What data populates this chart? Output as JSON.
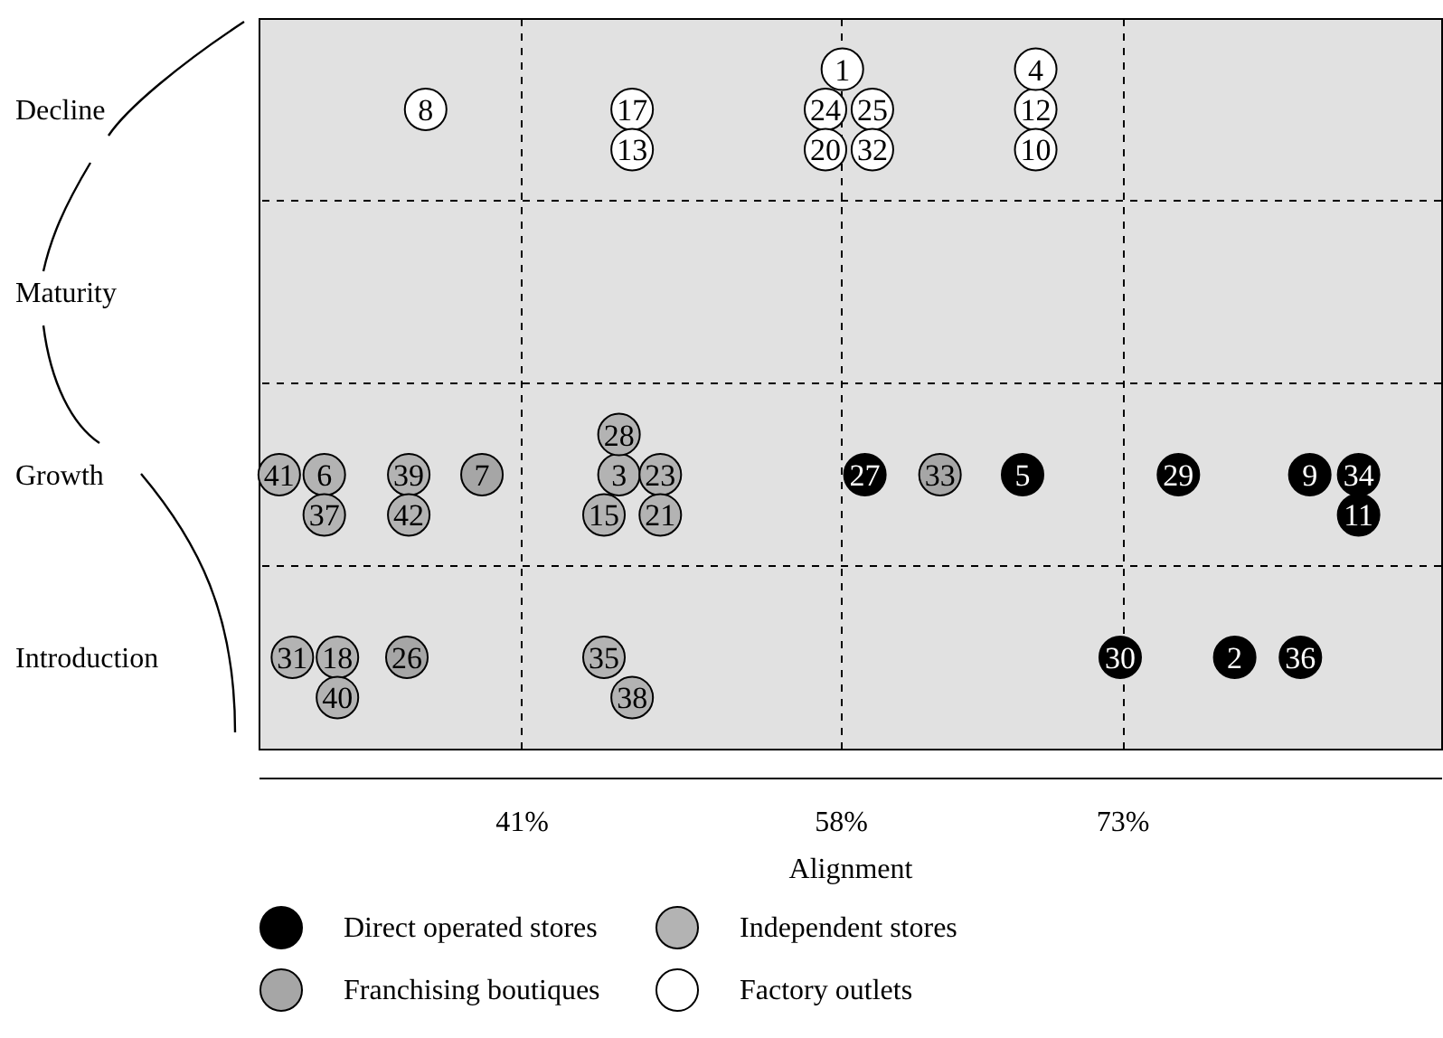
{
  "chart_data": {
    "type": "scatter",
    "orientation": "horizontal",
    "xlabel": "Alignment",
    "categories": [
      "Decline",
      "Maturity",
      "Growth",
      "Introduction"
    ],
    "xlim": [
      27,
      90
    ],
    "xticks": [
      {
        "value": 41,
        "label": "41%"
      },
      {
        "value": 58,
        "label": "58%"
      },
      {
        "value": 73,
        "label": "73%"
      }
    ],
    "grid": true,
    "marker": "circle",
    "legend": "bottom",
    "series": [
      {
        "name": "Direct operated stores",
        "color": "#000000",
        "x": [
          "Growth",
          "Growth",
          "Growth",
          "Growth",
          "Growth",
          "Growth",
          "Introduction",
          "Introduction",
          "Introduction"
        ],
        "values": [
          59.3,
          67.7,
          76.0,
          83.0,
          85.6,
          85.6,
          72.9,
          79.0,
          82.5
        ]
      },
      {
        "name": "Independent stores",
        "color": "#b3b3b3",
        "x": [
          "Growth",
          "Growth",
          "Growth",
          "Growth",
          "Growth",
          "Growth",
          "Growth",
          "Growth",
          "Growth",
          "Growth",
          "Introduction",
          "Introduction",
          "Introduction",
          "Introduction",
          "Introduction"
        ],
        "values": [
          30.5,
          28.1,
          30.5,
          35.0,
          35.0,
          46.2,
          48.4,
          45.4,
          48.4,
          46.2,
          31.2,
          28.8,
          31.2,
          45.4,
          46.9
        ]
      },
      {
        "name": "Franchising boutiques",
        "color": "#a6a6a6",
        "x": [
          "Growth",
          "Growth",
          "Introduction"
        ],
        "values": [
          38.9,
          63.3,
          34.9
        ]
      },
      {
        "name": "Factory outlets",
        "color": "#ffffff",
        "x": [
          "Decline",
          "Decline",
          "Decline",
          "Decline",
          "Decline",
          "Decline",
          "Decline",
          "Decline",
          "Decline",
          "Decline",
          "Decline"
        ],
        "values": [
          35.9,
          46.9,
          46.9,
          57.2,
          59.7,
          57.2,
          59.7,
          58.1,
          68.4,
          68.4,
          68.4
        ]
      }
    ],
    "annotations": [
      {
        "text": "27",
        "x": 59.3,
        "y": "Growth"
      },
      {
        "text": "5",
        "x": 67.7,
        "y": "Growth"
      },
      {
        "text": "29",
        "x": 76.0,
        "y": "Growth"
      },
      {
        "text": "9",
        "x": 83.0,
        "y": "Growth"
      },
      {
        "text": "34",
        "x": 85.6,
        "y": "Growth"
      },
      {
        "text": "11",
        "x": 85.6,
        "y": "Growth"
      },
      {
        "text": "30",
        "x": 72.9,
        "y": "Introduction"
      },
      {
        "text": "2",
        "x": 79.0,
        "y": "Introduction"
      },
      {
        "text": "36",
        "x": 82.5,
        "y": "Introduction"
      },
      {
        "text": "6",
        "x": 30.5,
        "y": "Growth"
      },
      {
        "text": "41",
        "x": 28.1,
        "y": "Growth"
      },
      {
        "text": "37",
        "x": 30.5,
        "y": "Growth"
      },
      {
        "text": "39",
        "x": 35.0,
        "y": "Growth"
      },
      {
        "text": "42",
        "x": 35.0,
        "y": "Growth"
      },
      {
        "text": "3",
        "x": 46.2,
        "y": "Growth"
      },
      {
        "text": "23",
        "x": 48.4,
        "y": "Growth"
      },
      {
        "text": "15",
        "x": 45.4,
        "y": "Growth"
      },
      {
        "text": "21",
        "x": 48.4,
        "y": "Growth"
      },
      {
        "text": "28",
        "x": 46.2,
        "y": "Growth"
      },
      {
        "text": "18",
        "x": 31.2,
        "y": "Introduction"
      },
      {
        "text": "31",
        "x": 28.8,
        "y": "Introduction"
      },
      {
        "text": "40",
        "x": 31.2,
        "y": "Introduction"
      },
      {
        "text": "35",
        "x": 45.4,
        "y": "Introduction"
      },
      {
        "text": "38",
        "x": 46.9,
        "y": "Introduction"
      },
      {
        "text": "7",
        "x": 38.9,
        "y": "Growth"
      },
      {
        "text": "33",
        "x": 63.3,
        "y": "Growth"
      },
      {
        "text": "26",
        "x": 34.9,
        "y": "Introduction"
      },
      {
        "text": "8",
        "x": 35.9,
        "y": "Decline"
      },
      {
        "text": "17",
        "x": 46.9,
        "y": "Decline"
      },
      {
        "text": "13",
        "x": 46.9,
        "y": "Decline"
      },
      {
        "text": "24",
        "x": 57.2,
        "y": "Decline"
      },
      {
        "text": "25",
        "x": 59.7,
        "y": "Decline"
      },
      {
        "text": "20",
        "x": 57.2,
        "y": "Decline"
      },
      {
        "text": "32",
        "x": 59.7,
        "y": "Decline"
      },
      {
        "text": "1",
        "x": 58.1,
        "y": "Decline"
      },
      {
        "text": "12",
        "x": 68.4,
        "y": "Decline"
      },
      {
        "text": "10",
        "x": 68.4,
        "y": "Decline"
      },
      {
        "text": "4",
        "x": 68.4,
        "y": "Decline"
      }
    ]
  }
}
